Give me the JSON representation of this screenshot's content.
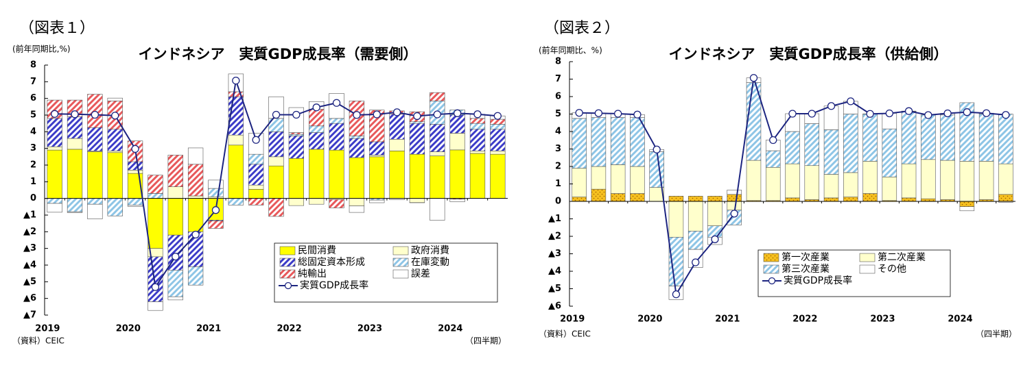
{
  "chart_data": [
    {
      "type": "bar",
      "stacked": true,
      "figure_label": "（図表１）",
      "title": "インドネシア　実質GDP成長率（需要側）",
      "y_label": "(前年同期比,%)",
      "source": "（資料）CEIC",
      "x_label": "（四半期）",
      "categories": [
        "2019",
        null,
        null,
        null,
        "2020",
        null,
        null,
        null,
        "2021",
        null,
        null,
        null,
        "2022",
        null,
        null,
        null,
        "2023",
        null,
        null,
        null,
        "2024",
        null,
        null
      ],
      "ylim": [
        -7,
        8
      ],
      "yticks": [
        {
          "value": -7,
          "label": "▲7"
        },
        {
          "value": -6,
          "label": "▲6"
        },
        {
          "value": -5,
          "label": "▲5"
        },
        {
          "value": -4,
          "label": "▲4"
        },
        {
          "value": -3,
          "label": "▲3"
        },
        {
          "value": -2,
          "label": "▲2"
        },
        {
          "value": -1,
          "label": "▲1"
        },
        0,
        1,
        2,
        3,
        4,
        5,
        6,
        7,
        8
      ],
      "series": [
        {
          "name": "民間消費",
          "color": "#ffff00",
          "pattern": "solid",
          "values": [
            2.9,
            2.95,
            2.8,
            2.75,
            1.5,
            -3.0,
            -2.2,
            -2.0,
            -1.3,
            3.2,
            0.55,
            1.95,
            2.4,
            2.95,
            2.9,
            2.45,
            2.5,
            2.85,
            2.65,
            2.55,
            2.91,
            2.7,
            2.65
          ]
        },
        {
          "name": "政府消費",
          "color": "#ffffcc",
          "pattern": "solid",
          "values": [
            0.2,
            0.65,
            0.05,
            0.1,
            0.2,
            -0.5,
            0.7,
            0.15,
            0.1,
            0.6,
            0.25,
            0.55,
            -0.43,
            -0.35,
            -0.07,
            -0.45,
            0.1,
            0.7,
            -0.25,
            0.25,
            1.0,
            0.15,
            0.2
          ]
        },
        {
          "name": "総固定資本形成",
          "color": "#3c3cc8",
          "pattern": "hatch",
          "values": [
            1.7,
            1.3,
            1.4,
            1.3,
            0.5,
            -2.7,
            -2.1,
            -2.1,
            -0.05,
            2.3,
            1.25,
            1.5,
            1.35,
            1.0,
            1.6,
            1.15,
            0.8,
            1.5,
            1.85,
            1.65,
            1.1,
            1.3,
            1.3
          ]
        },
        {
          "name": "在庫変動",
          "color": "#8ec5e6",
          "pattern": "hatch",
          "values": [
            -0.3,
            -0.8,
            -0.35,
            -1.05,
            -0.4,
            0.3,
            -1.6,
            -1.1,
            0.5,
            -0.4,
            0.6,
            0.8,
            0.1,
            0.4,
            0.3,
            0.15,
            -0.1,
            0.0,
            0.1,
            1.4,
            0.3,
            0.35,
            0.3
          ]
        },
        {
          "name": "純輸出",
          "color": "#e8595b",
          "pattern": "hatch",
          "values": [
            1.1,
            1.0,
            2.0,
            1.7,
            1.25,
            1.1,
            1.9,
            1.9,
            -0.45,
            0.3,
            -0.4,
            -1.08,
            0.1,
            1.0,
            -0.5,
            2.1,
            1.9,
            0.2,
            0.6,
            0.5,
            -0.05,
            0.3,
            0.3
          ]
        },
        {
          "name": "誤差",
          "color": "#ffffff",
          "pattern": "solid",
          "values": [
            -0.53,
            -0.05,
            -0.88,
            0.17,
            -0.08,
            -0.52,
            -0.19,
            0.98,
            0.5,
            1.07,
            1.26,
            1.3,
            1.5,
            0.46,
            1.5,
            -0.39,
            -0.16,
            -0.08,
            -0.01,
            -1.31,
            -0.15,
            0.25,
            0.2
          ]
        },
        {
          "name": "実質GDP成長率",
          "color": "#1c2480",
          "type": "line",
          "values": [
            5.07,
            5.05,
            5.02,
            4.97,
            2.97,
            -5.32,
            -3.49,
            -2.17,
            -0.7,
            7.07,
            3.51,
            5.02,
            5.02,
            5.46,
            5.73,
            5.01,
            5.04,
            5.17,
            4.94,
            5.04,
            5.11,
            5.05,
            4.95
          ]
        }
      ]
    },
    {
      "type": "bar",
      "stacked": true,
      "figure_label": "（図表２）",
      "title": "インドネシア　実質GDP成長率（供給側）",
      "y_label": "(前年同期比、%)",
      "source": "（資料）CEIC",
      "x_label": "（四半期）",
      "categories": [
        "2019",
        null,
        null,
        null,
        "2020",
        null,
        null,
        null,
        "2021",
        null,
        null,
        null,
        "2022",
        null,
        null,
        null,
        "2023",
        null,
        null,
        null,
        "2024",
        null,
        null
      ],
      "ylim": [
        -6,
        8
      ],
      "yticks": [
        {
          "value": -6,
          "label": "▲6"
        },
        {
          "value": -5,
          "label": "▲5"
        },
        {
          "value": -4,
          "label": "▲4"
        },
        {
          "value": -3,
          "label": "▲3"
        },
        {
          "value": -2,
          "label": "▲2"
        },
        {
          "value": -1,
          "label": "▲1"
        },
        0,
        1,
        2,
        3,
        4,
        5,
        6,
        7,
        8
      ],
      "series": [
        {
          "name": "第一次産業",
          "color": "#f5c020",
          "pattern": "dots",
          "values": [
            0.25,
            0.7,
            0.45,
            0.45,
            0.0,
            0.3,
            0.3,
            0.3,
            0.4,
            0.05,
            0.05,
            0.2,
            0.1,
            0.2,
            0.25,
            0.45,
            0.05,
            0.2,
            0.15,
            0.1,
            -0.3,
            0.1,
            0.4
          ]
        },
        {
          "name": "第二次産業",
          "color": "#ffffcc",
          "pattern": "solid",
          "values": [
            1.65,
            1.3,
            1.65,
            1.55,
            0.8,
            -2.05,
            -1.7,
            -1.4,
            -0.5,
            2.3,
            1.9,
            1.95,
            1.95,
            1.35,
            1.4,
            1.85,
            1.35,
            1.95,
            2.25,
            2.25,
            2.3,
            2.2,
            1.75
          ]
        },
        {
          "name": "第三次産業",
          "color": "#8ec5e6",
          "pattern": "hatch",
          "values": [
            2.85,
            2.8,
            2.7,
            2.8,
            2.05,
            -2.8,
            -1.05,
            -0.65,
            -0.85,
            4.45,
            0.95,
            1.85,
            2.4,
            2.55,
            3.35,
            2.7,
            2.75,
            3.0,
            2.55,
            2.6,
            3.35,
            2.7,
            2.85
          ]
        },
        {
          "name": "その他",
          "color": "#ffffff",
          "pattern": "solid",
          "values": [
            0.32,
            0.25,
            0.22,
            0.17,
            0.12,
            -0.77,
            -1.04,
            -0.42,
            0.25,
            0.27,
            0.61,
            1.02,
            0.57,
            1.36,
            0.73,
            0.01,
            0.89,
            0.02,
            -0.01,
            0.09,
            -0.24,
            0.05,
            -0.05
          ]
        },
        {
          "name": "実質GDP成長率",
          "color": "#1c2480",
          "type": "line",
          "values": [
            5.07,
            5.05,
            5.02,
            4.97,
            2.97,
            -5.32,
            -3.49,
            -2.17,
            -0.7,
            7.07,
            3.51,
            5.02,
            5.02,
            5.46,
            5.73,
            5.01,
            5.04,
            5.17,
            4.94,
            5.04,
            5.11,
            5.05,
            4.95
          ]
        }
      ]
    }
  ]
}
